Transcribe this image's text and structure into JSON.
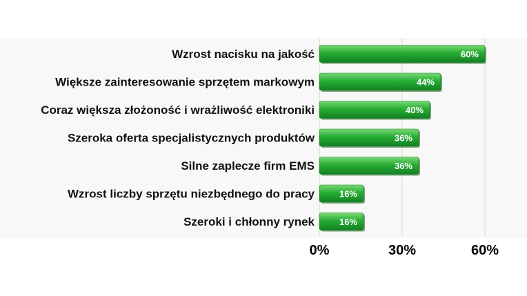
{
  "chart_data": {
    "type": "bar",
    "orientation": "horizontal",
    "categories": [
      "Wzrost nacisku na jakość",
      "Większe zainteresowanie sprzętem markowym",
      "Coraz większa złożoność i wrażliwość elektroniki",
      "Szeroka oferta specjalistycznych produktów",
      "Silne zaplecze firm EMS",
      "Wzrost liczby sprzętu niezbędnego do pracy",
      "Szeroki i chłonny rynek"
    ],
    "values": [
      60,
      44,
      40,
      36,
      36,
      16,
      16
    ],
    "data_labels": [
      "60%",
      "44%",
      "40%",
      "36%",
      "36%",
      "16%",
      "16%"
    ],
    "x_ticks": [
      "0%",
      "30%",
      "60%"
    ],
    "xlim": [
      0,
      60
    ],
    "title": "",
    "xlabel": "",
    "ylabel": "",
    "grid": true,
    "colors": {
      "bar_light": "#6fd36a",
      "bar_main": "#1fa52e",
      "bar_dark": "#137a20",
      "background": "#f8f8f8",
      "gridline": "#c8e6b8"
    }
  }
}
